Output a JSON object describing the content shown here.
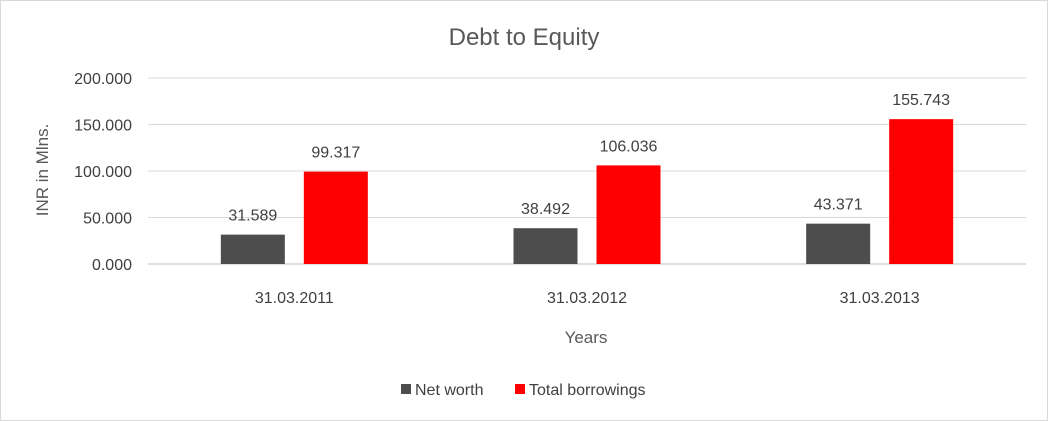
{
  "chart_data": {
    "type": "bar",
    "title": "Debt to Equity",
    "xlabel": "Years",
    "ylabel": "INR in Mlns.",
    "categories": [
      "31.03.2011",
      "31.03.2012",
      "31.03.2013"
    ],
    "series": [
      {
        "name": "Net worth",
        "values": [
          31.589,
          38.492,
          43.371
        ],
        "color": "#4d4d4d"
      },
      {
        "name": "Total borrowings",
        "values": [
          99.317,
          106.036,
          155.743
        ],
        "color": "#ff0000"
      }
    ],
    "data_labels": [
      [
        "31.589",
        "38.492",
        "43.371"
      ],
      [
        "99.317",
        "106.036",
        "155.743"
      ]
    ],
    "ylim": [
      0,
      200
    ],
    "yticks": [
      0,
      50,
      100,
      150,
      200
    ],
    "ytick_labels": [
      "0.000",
      "50.000",
      "100.000",
      "150.000",
      "200.000"
    ],
    "grid": true,
    "legend_position": "bottom",
    "colors": {
      "gridline": "#d9d9d9",
      "axis": "#bfbfbf"
    }
  }
}
